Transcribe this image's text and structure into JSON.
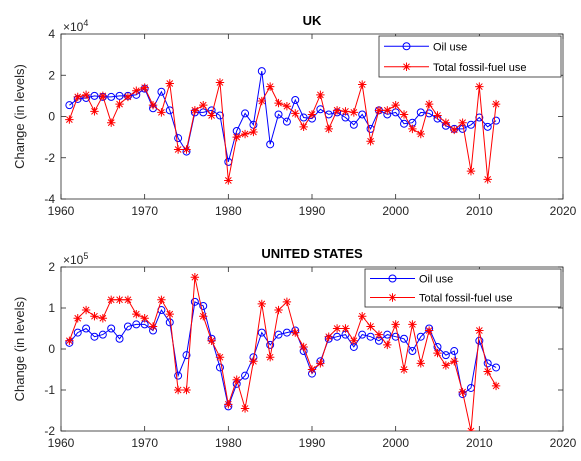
{
  "chart_data": [
    {
      "type": "line",
      "title": "UK",
      "ylabel": "Change (in levels)",
      "xlabel": "",
      "exponent_label": "×10",
      "exponent_power": "4",
      "exponent": 4,
      "xlim": [
        1960,
        2020
      ],
      "ylim": [
        -4,
        4
      ],
      "xticks": [
        1960,
        1970,
        1980,
        1990,
        2000,
        2010,
        2020
      ],
      "yticks": [
        -4,
        -2,
        0,
        2,
        4
      ],
      "grid": false,
      "legend_position": "top-right",
      "series": [
        {
          "name": "Oil use",
          "color": "#0000ff",
          "marker": "circle",
          "x": [
            1961,
            1962,
            1963,
            1964,
            1965,
            1966,
            1967,
            1968,
            1969,
            1970,
            1971,
            1972,
            1973,
            1974,
            1975,
            1976,
            1977,
            1978,
            1979,
            1980,
            1981,
            1982,
            1983,
            1984,
            1985,
            1986,
            1987,
            1988,
            1989,
            1990,
            1991,
            1992,
            1993,
            1994,
            1995,
            1996,
            1997,
            1998,
            1999,
            2000,
            2001,
            2002,
            2003,
            2004,
            2005,
            2006,
            2007,
            2008,
            2009,
            2010,
            2011,
            2012
          ],
          "values": [
            0.55,
            0.85,
            0.9,
            1.0,
            0.95,
            0.95,
            1.0,
            1.0,
            1.05,
            1.35,
            0.4,
            1.2,
            0.3,
            -1.05,
            -1.7,
            0.2,
            0.2,
            0.3,
            0.05,
            -2.2,
            -0.7,
            0.15,
            -0.4,
            2.2,
            -1.35,
            0.1,
            -0.25,
            0.8,
            -0.05,
            -0.1,
            0.35,
            0.1,
            0.2,
            -0.05,
            -0.4,
            0.1,
            -0.6,
            0.3,
            0.1,
            0.2,
            -0.35,
            -0.3,
            0.2,
            0.15,
            -0.1,
            -0.45,
            -0.6,
            -0.6,
            -0.4,
            -0.05,
            -0.5,
            -0.2
          ]
        },
        {
          "name": "Total fossil-fuel use",
          "color": "#ff0000",
          "marker": "asterisk",
          "x": [
            1961,
            1962,
            1963,
            1964,
            1965,
            1966,
            1967,
            1968,
            1969,
            1970,
            1971,
            1972,
            1973,
            1974,
            1975,
            1976,
            1977,
            1978,
            1979,
            1980,
            1981,
            1982,
            1983,
            1984,
            1985,
            1986,
            1987,
            1988,
            1989,
            1990,
            1991,
            1992,
            1993,
            1994,
            1995,
            1996,
            1997,
            1998,
            1999,
            2000,
            2001,
            2002,
            2003,
            2004,
            2005,
            2006,
            2007,
            2008,
            2009,
            2010,
            2011,
            2012
          ],
          "values": [
            -0.15,
            0.95,
            1.05,
            0.25,
            1.0,
            -0.3,
            0.6,
            0.95,
            1.25,
            1.4,
            0.55,
            0.2,
            1.6,
            -1.6,
            -1.6,
            0.3,
            0.55,
            0.05,
            1.65,
            -3.1,
            -1.0,
            -0.85,
            -0.75,
            0.75,
            1.45,
            0.65,
            0.5,
            0.15,
            -0.5,
            0.1,
            1.05,
            -0.6,
            0.3,
            0.25,
            0.2,
            1.55,
            -1.2,
            0.3,
            0.3,
            0.55,
            0.1,
            -0.6,
            -0.85,
            0.6,
            0.05,
            -0.3,
            -0.65,
            -0.3,
            -2.65,
            1.45,
            -3.05,
            0.6
          ]
        }
      ]
    },
    {
      "type": "line",
      "title": "UNITED STATES",
      "ylabel": "Change (in levels)",
      "xlabel": "",
      "exponent_label": "×10",
      "exponent_power": "5",
      "exponent": 5,
      "xlim": [
        1960,
        2020
      ],
      "ylim": [
        -2,
        2
      ],
      "xticks": [
        1960,
        1970,
        1980,
        1990,
        2000,
        2010,
        2020
      ],
      "yticks": [
        -2,
        -1,
        0,
        1,
        2
      ],
      "grid": false,
      "legend_position": "top-right",
      "series": [
        {
          "name": "Oil use",
          "color": "#0000ff",
          "marker": "circle",
          "x": [
            1961,
            1962,
            1963,
            1964,
            1965,
            1966,
            1967,
            1968,
            1969,
            1970,
            1971,
            1972,
            1973,
            1974,
            1975,
            1976,
            1977,
            1978,
            1979,
            1980,
            1981,
            1982,
            1983,
            1984,
            1985,
            1986,
            1987,
            1988,
            1989,
            1990,
            1991,
            1992,
            1993,
            1994,
            1995,
            1996,
            1997,
            1998,
            1999,
            2000,
            2001,
            2002,
            2003,
            2004,
            2005,
            2006,
            2007,
            2008,
            2009,
            2010,
            2011,
            2012
          ],
          "values": [
            0.15,
            0.4,
            0.5,
            0.3,
            0.35,
            0.5,
            0.25,
            0.55,
            0.6,
            0.6,
            0.45,
            0.95,
            0.65,
            -0.65,
            -0.15,
            1.15,
            1.05,
            0.25,
            -0.45,
            -1.4,
            -0.85,
            -0.65,
            -0.2,
            0.4,
            0.1,
            0.35,
            0.4,
            0.45,
            -0.05,
            -0.6,
            -0.3,
            0.25,
            0.3,
            0.35,
            0.05,
            0.35,
            0.3,
            0.2,
            0.35,
            0.3,
            0.25,
            -0.05,
            0.3,
            0.5,
            0.05,
            -0.15,
            -0.05,
            -1.1,
            -0.95,
            0.2,
            -0.35,
            -0.45
          ]
        },
        {
          "name": "Total fossil-fuel use",
          "color": "#ff0000",
          "marker": "asterisk",
          "x": [
            1961,
            1962,
            1963,
            1964,
            1965,
            1966,
            1967,
            1968,
            1969,
            1970,
            1971,
            1972,
            1973,
            1974,
            1975,
            1976,
            1977,
            1978,
            1979,
            1980,
            1981,
            1982,
            1983,
            1984,
            1985,
            1986,
            1987,
            1988,
            1989,
            1990,
            1991,
            1992,
            1993,
            1994,
            1995,
            1996,
            1997,
            1998,
            1999,
            2000,
            2001,
            2002,
            2003,
            2004,
            2005,
            2006,
            2007,
            2008,
            2009,
            2010,
            2011,
            2012
          ],
          "values": [
            0.2,
            0.75,
            0.95,
            0.8,
            0.75,
            1.2,
            1.2,
            1.2,
            0.85,
            0.75,
            0.55,
            1.2,
            0.85,
            -1.0,
            -1.0,
            1.75,
            0.8,
            0.2,
            -0.2,
            -1.35,
            -0.75,
            -1.45,
            -0.3,
            1.1,
            -0.2,
            0.95,
            1.15,
            0.4,
            0.05,
            -0.5,
            -0.35,
            0.3,
            0.5,
            0.5,
            0.2,
            0.8,
            0.55,
            0.35,
            0.1,
            0.6,
            -0.5,
            0.6,
            -0.35,
            0.45,
            -0.1,
            -0.4,
            -0.3,
            -1.05,
            -2.0,
            0.45,
            -0.55,
            -0.9
          ]
        }
      ]
    }
  ]
}
